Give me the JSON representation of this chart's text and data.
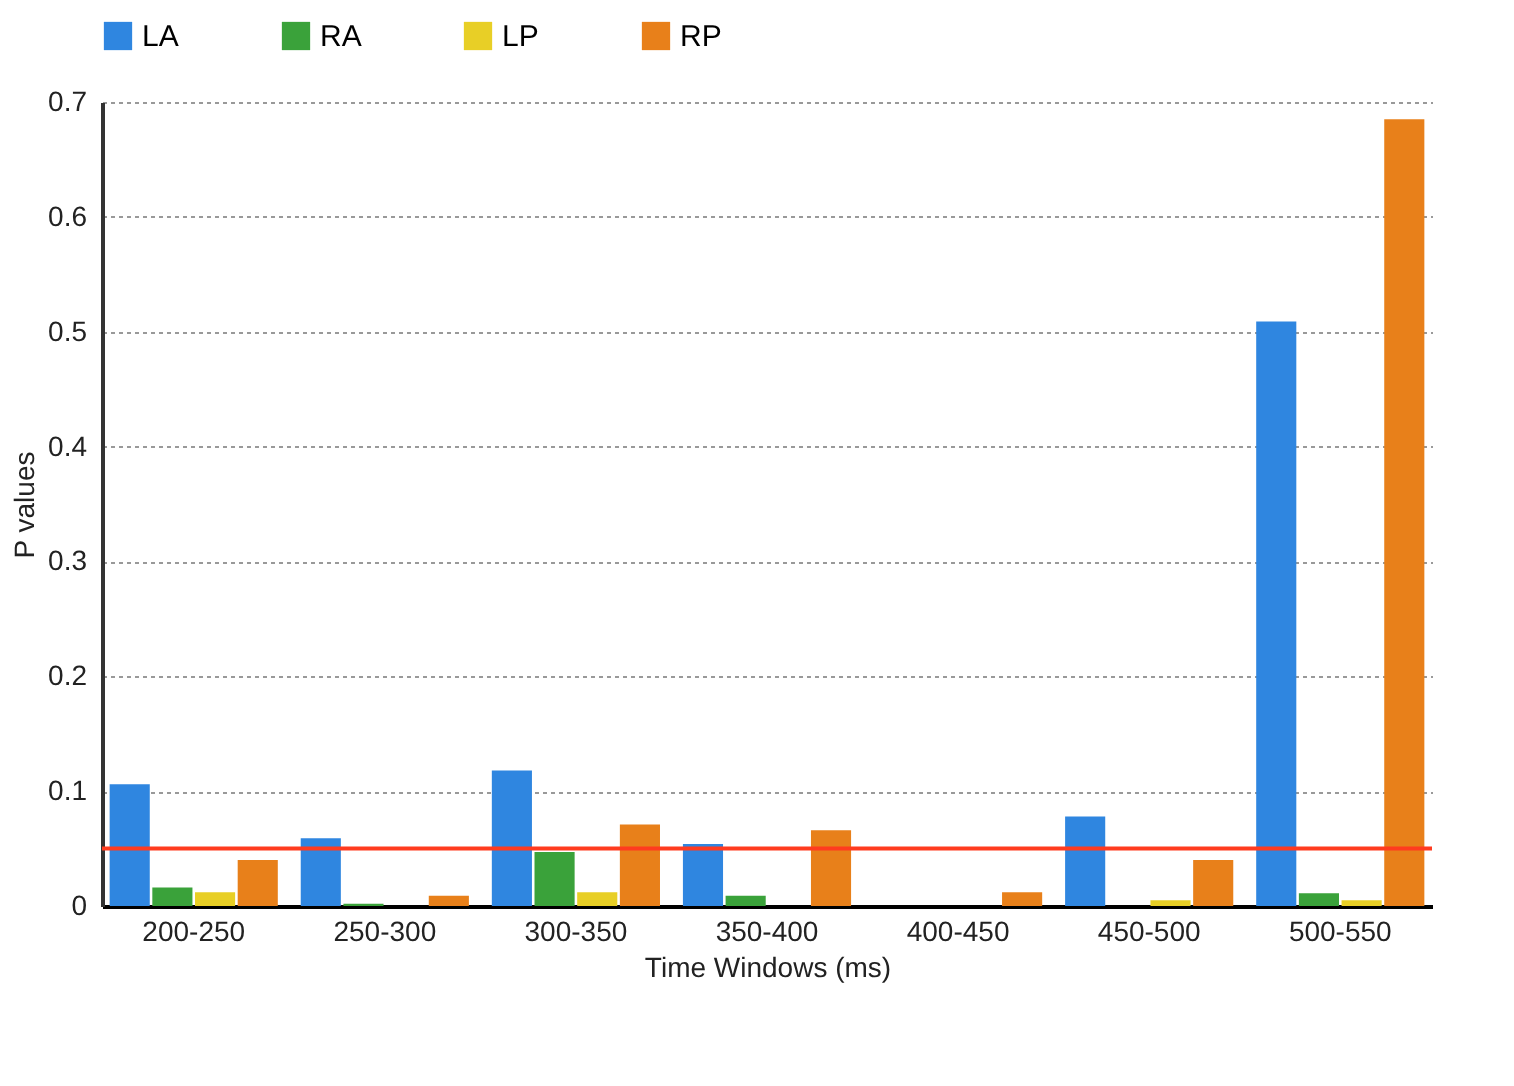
{
  "chart_data": {
    "type": "bar",
    "xlabel": "Time Windows (ms)",
    "ylabel": "P values",
    "categories": [
      "200-250",
      "250-300",
      "300-350",
      "350-400",
      "400-450",
      "450-500",
      "500-550"
    ],
    "series": [
      {
        "name": "LA",
        "color": "#2f86e0",
        "values": [
          0.106,
          0.059,
          0.118,
          0.054,
          0,
          0.078,
          0.509
        ]
      },
      {
        "name": "RA",
        "color": "#3aa23a",
        "values": [
          0.016,
          0.002,
          0.047,
          0.009,
          0,
          0,
          0.011
        ]
      },
      {
        "name": "LP",
        "color": "#e8cf26",
        "values": [
          0.012,
          0,
          0.012,
          0,
          0,
          0.005,
          0.005
        ]
      },
      {
        "name": "RP",
        "color": "#e8801a",
        "values": [
          0.04,
          0.009,
          0.071,
          0.066,
          0.012,
          0.04,
          0.685
        ]
      }
    ],
    "ylim": [
      0,
      0.7
    ],
    "yticks": [
      0,
      0.1,
      0.2,
      0.3,
      0.4,
      0.5,
      0.6,
      0.7
    ],
    "ref_lines": [
      {
        "axis": "y",
        "value": 0.05,
        "color": "#ff3b1f"
      }
    ],
    "grid": "y",
    "legend": "top"
  }
}
